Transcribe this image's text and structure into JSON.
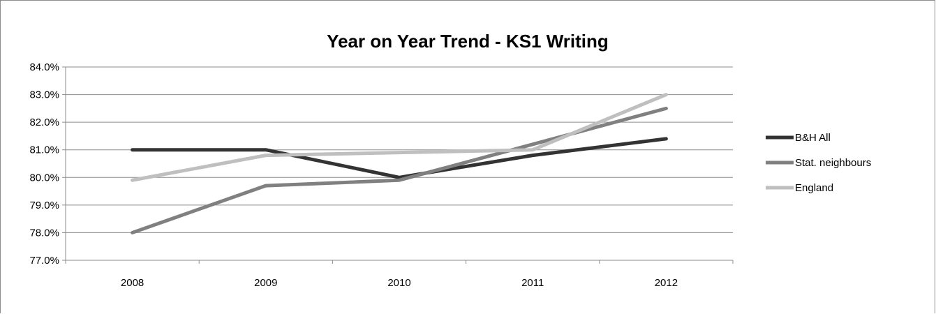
{
  "chart_data": {
    "type": "line",
    "title": "Year on Year Trend - KS1 Writing",
    "xlabel": "",
    "ylabel": "",
    "categories": [
      "2008",
      "2009",
      "2010",
      "2011",
      "2012"
    ],
    "ylim": [
      77.0,
      84.0
    ],
    "yticks": [
      77.0,
      78.0,
      79.0,
      80.0,
      81.0,
      82.0,
      83.0,
      84.0
    ],
    "ytick_labels": [
      "77.0%",
      "78.0%",
      "79.0%",
      "80.0%",
      "81.0%",
      "82.0%",
      "83.0%",
      "84.0%"
    ],
    "grid": true,
    "legend_position": "right",
    "series": [
      {
        "name": "B&H All",
        "values": [
          81.0,
          81.0,
          80.0,
          80.8,
          81.4
        ],
        "color": "#333333"
      },
      {
        "name": "Stat. neighbours",
        "values": [
          78.0,
          79.7,
          79.9,
          81.2,
          82.5
        ],
        "color": "#808080"
      },
      {
        "name": "England",
        "values": [
          79.9,
          80.8,
          80.9,
          81.0,
          83.0
        ],
        "color": "#bfbfbf"
      }
    ]
  }
}
